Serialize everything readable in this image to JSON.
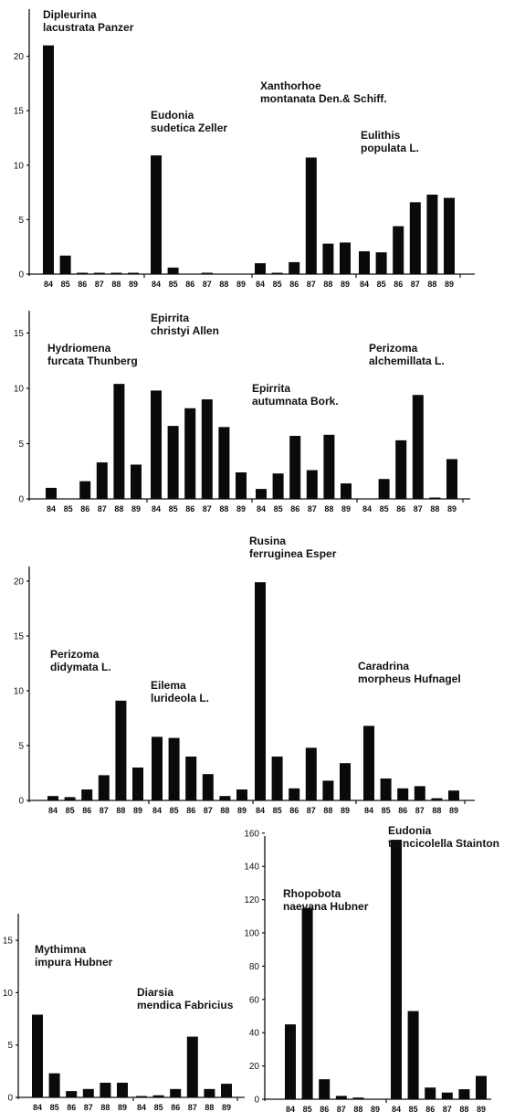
{
  "chart_data": [
    {
      "type": "bar",
      "panel": "row-1",
      "ylim": [
        0,
        22
      ],
      "yticks": [
        0,
        5,
        10,
        15,
        20
      ],
      "categories": [
        "84",
        "85",
        "86",
        "87",
        "88",
        "89"
      ],
      "series": [
        {
          "name": "Dipleurina lacustrata Panzer",
          "values": [
            21.0,
            1.7,
            0.1,
            0.1,
            0.1,
            0.1
          ]
        },
        {
          "name": "Eudonia sudetica Zeller",
          "values": [
            10.9,
            0.6,
            0.0,
            0.1,
            0.0,
            0.0
          ]
        },
        {
          "name": "Xanthorhoe montanata Den.& Schiff.",
          "values": [
            1.0,
            0.1,
            1.1,
            10.7,
            2.8,
            2.9
          ]
        },
        {
          "name": "Eulithis populata L.",
          "values": [
            2.1,
            2.0,
            4.4,
            6.6,
            7.3,
            7.0
          ]
        }
      ]
    },
    {
      "type": "bar",
      "panel": "row-2",
      "ylim": [
        0,
        17
      ],
      "yticks": [
        0,
        5,
        10,
        15
      ],
      "categories": [
        "84",
        "85",
        "86",
        "87",
        "88",
        "89"
      ],
      "series": [
        {
          "name": "Hydriomena furcata Thunberg",
          "values": [
            1.0,
            0.0,
            1.6,
            3.3,
            10.4,
            3.1
          ]
        },
        {
          "name": "Epirrita christyi Allen",
          "values": [
            9.8,
            6.6,
            8.2,
            9.0,
            6.5,
            2.4
          ]
        },
        {
          "name": "Epirrita autumnata Bork.",
          "values": [
            0.9,
            2.3,
            5.7,
            2.6,
            5.8,
            1.4
          ]
        },
        {
          "name": "Perizoma alchemillata L.",
          "values": [
            0.0,
            1.8,
            5.3,
            9.4,
            0.1,
            3.6
          ]
        }
      ]
    },
    {
      "type": "bar",
      "panel": "row-3",
      "ylim": [
        0,
        22
      ],
      "yticks": [
        0,
        5,
        10,
        15,
        20
      ],
      "categories": [
        "84",
        "85",
        "86",
        "87",
        "88",
        "89"
      ],
      "series": [
        {
          "name": "Perizoma didymata L.",
          "values": [
            0.4,
            0.3,
            1.0,
            2.3,
            9.1,
            3.0
          ]
        },
        {
          "name": "Eilema lurideola L.",
          "values": [
            5.8,
            5.7,
            4.0,
            2.4,
            0.4,
            1.0
          ]
        },
        {
          "name": "Rusina ferruginea Esper",
          "values": [
            19.9,
            4.0,
            1.1,
            4.8,
            1.8,
            3.4
          ]
        },
        {
          "name": "Caradrina morpheus Hufnagel",
          "values": [
            6.8,
            2.0,
            1.1,
            1.3,
            0.2,
            0.9
          ]
        }
      ]
    },
    {
      "type": "bar",
      "panel": "row-4-left",
      "ylim": [
        0,
        18
      ],
      "yticks": [
        0,
        5,
        10,
        15
      ],
      "categories": [
        "84",
        "85",
        "86",
        "87",
        "88",
        "89"
      ],
      "series": [
        {
          "name": "Mythimna impura Hubner",
          "values": [
            7.9,
            2.3,
            0.6,
            0.8,
            1.4,
            1.4
          ]
        },
        {
          "name": "Diarsia mendica Fabricius",
          "values": [
            0.1,
            0.2,
            0.8,
            5.8,
            0.8,
            1.3
          ]
        }
      ]
    },
    {
      "type": "bar",
      "panel": "row-4-right",
      "ylim": [
        0,
        170
      ],
      "yticks": [
        0,
        20,
        40,
        60,
        80,
        100,
        120,
        140,
        160
      ],
      "categories": [
        "84",
        "85",
        "86",
        "87",
        "88",
        "89"
      ],
      "series": [
        {
          "name": "Rhopobota naevana Hubner",
          "values": [
            45,
            115,
            12,
            2,
            1,
            0
          ]
        },
        {
          "name": "Eudonia truncicolella Stainton",
          "values": [
            156,
            53,
            7,
            4,
            6,
            14
          ]
        }
      ]
    }
  ]
}
